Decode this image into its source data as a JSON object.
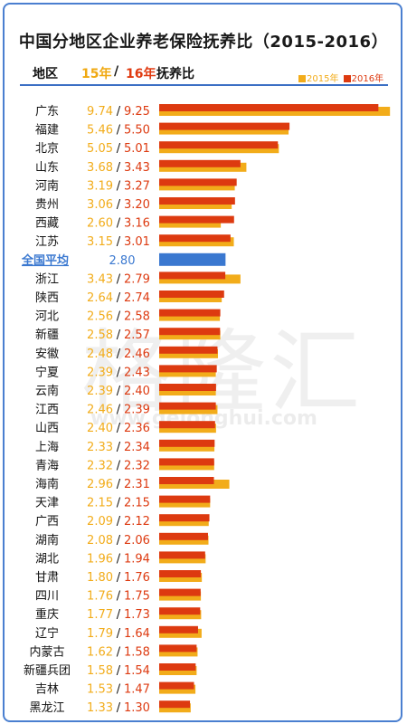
{
  "title": "中国分地区企业养老保险抚养比（2015-2016）",
  "header": {
    "region": "地区",
    "y15": "15年",
    "slash": "/",
    "y16": "16年",
    "suffix": "抚养比"
  },
  "legend": {
    "s2015": "2015年",
    "s2016": "2016年"
  },
  "watermark": {
    "logo": "格隆汇",
    "url": "www.gelonghui.com"
  },
  "colors": {
    "c2015": "#f2ac1a",
    "c2016": "#dd3a10",
    "average": "#3a78d0",
    "border": "#4a7fd0"
  },
  "chart_data": {
    "type": "bar",
    "orientation": "horizontal",
    "value_separator": "/",
    "categories": [
      "广东",
      "福建",
      "北京",
      "山东",
      "河南",
      "贵州",
      "西藏",
      "江苏",
      "全国平均",
      "浙江",
      "陕西",
      "河北",
      "新疆",
      "安徽",
      "宁夏",
      "云南",
      "江西",
      "山西",
      "上海",
      "青海",
      "海南",
      "天津",
      "广西",
      "湖南",
      "湖北",
      "甘肃",
      "四川",
      "重庆",
      "辽宁",
      "内蒙古",
      "新疆兵团",
      "吉林",
      "黑龙江"
    ],
    "series": [
      {
        "name": "2015年",
        "values": [
          9.74,
          5.46,
          5.05,
          3.68,
          3.19,
          3.06,
          2.6,
          3.15,
          2.8,
          3.43,
          2.64,
          2.56,
          2.58,
          2.48,
          2.39,
          2.39,
          2.46,
          2.4,
          2.33,
          2.32,
          2.96,
          2.15,
          2.09,
          2.08,
          1.96,
          1.8,
          1.76,
          1.77,
          1.79,
          1.62,
          1.58,
          1.53,
          1.33
        ]
      },
      {
        "name": "2016年",
        "values": [
          9.25,
          5.5,
          5.01,
          3.43,
          3.27,
          3.2,
          3.16,
          3.01,
          2.8,
          2.79,
          2.74,
          2.58,
          2.57,
          2.46,
          2.43,
          2.4,
          2.39,
          2.36,
          2.34,
          2.32,
          2.31,
          2.15,
          2.12,
          2.06,
          1.94,
          1.76,
          1.75,
          1.73,
          1.64,
          1.58,
          1.54,
          1.47,
          1.3
        ]
      }
    ],
    "labels_2015": [
      "9.74",
      "5.46",
      "5.05",
      "3.68",
      "3.19",
      "3.06",
      "2.60",
      "3.15",
      "",
      "3.43",
      "2.64",
      "2.56",
      "2.58",
      "2.48",
      "2.39",
      "2.39",
      "2.46",
      "2.40",
      "2.33",
      "2.32",
      "2.96",
      "2.15",
      "2.09",
      "2.08",
      "1.96",
      "1.80",
      "1.76",
      "1.77",
      "1.79",
      "1.62",
      "1.58",
      "1.53",
      "1.33"
    ],
    "labels_2016": [
      "9.25",
      "5.50",
      "5.01",
      "3.43",
      "3.27",
      "3.20",
      "3.16",
      "3.01",
      "",
      "2.79",
      "2.74",
      "2.58",
      "2.57",
      "2.46",
      "2.43",
      "2.40",
      "2.39",
      "2.36",
      "2.34",
      "2.32",
      "2.31",
      "2.15",
      "2.12",
      "2.06",
      "1.94",
      "1.76",
      "1.75",
      "1.73",
      "1.64",
      "1.58",
      "1.54",
      "1.47",
      "1.30"
    ],
    "average_label": "2.80",
    "average_index": 8,
    "xlim": [
      0,
      10
    ],
    "grid": false
  }
}
